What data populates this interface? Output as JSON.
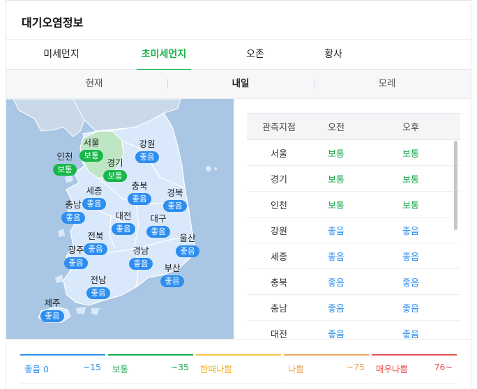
{
  "title": "대기오염정보",
  "tabs": [
    {
      "label": "미세먼지"
    },
    {
      "label": "초미세먼지"
    },
    {
      "label": "오존"
    },
    {
      "label": "황사"
    }
  ],
  "days": [
    {
      "label": "현재"
    },
    {
      "label": "내일"
    },
    {
      "label": "모레"
    }
  ],
  "map_regions": [
    {
      "name": "서울",
      "status": "보통"
    },
    {
      "name": "강원",
      "status": "좋음"
    },
    {
      "name": "인천",
      "status": "보통"
    },
    {
      "name": "경기",
      "status": "보통"
    },
    {
      "name": "세종",
      "status": "좋음"
    },
    {
      "name": "충북",
      "status": "좋음"
    },
    {
      "name": "경북",
      "status": "좋음"
    },
    {
      "name": "충남",
      "status": "좋음"
    },
    {
      "name": "대전",
      "status": "좋음"
    },
    {
      "name": "대구",
      "status": "좋음"
    },
    {
      "name": "전북",
      "status": "좋음"
    },
    {
      "name": "울산",
      "status": "좋음"
    },
    {
      "name": "광주",
      "status": "좋음"
    },
    {
      "name": "경남",
      "status": "좋음"
    },
    {
      "name": "부산",
      "status": "좋음"
    },
    {
      "name": "전남",
      "status": "좋음"
    },
    {
      "name": "제주",
      "status": "좋음"
    }
  ],
  "table": {
    "headers": [
      "관측지점",
      "오전",
      "오후"
    ],
    "rows": [
      {
        "loc": "서울",
        "am": "보통",
        "pm": "보통"
      },
      {
        "loc": "경기",
        "am": "보통",
        "pm": "보통"
      },
      {
        "loc": "인천",
        "am": "보통",
        "pm": "보통"
      },
      {
        "loc": "강원",
        "am": "좋음",
        "pm": "좋음"
      },
      {
        "loc": "세종",
        "am": "좋음",
        "pm": "좋음"
      },
      {
        "loc": "충북",
        "am": "좋음",
        "pm": "좋음"
      },
      {
        "loc": "충남",
        "am": "좋음",
        "pm": "좋음"
      },
      {
        "loc": "대전",
        "am": "좋음",
        "pm": "좋음"
      }
    ]
  },
  "legend": [
    {
      "label": "좋음 0",
      "range": "~15",
      "color": "#2d8ef0"
    },
    {
      "label": "보통",
      "range": "~35",
      "color": "#17a94a"
    },
    {
      "label": "한때나쁨",
      "range": "",
      "color": "#f5c242"
    },
    {
      "label": "나쁨",
      "range": "~75",
      "color": "#f0a25c"
    },
    {
      "label": "매우나쁨",
      "range": "76~",
      "color": "#e6534f"
    }
  ],
  "colors": {
    "accent": "#19b34d",
    "good": "#2d8ef0",
    "normal": "#17b84a",
    "sea": "#a9c7e4",
    "land": "#d9e9fb"
  }
}
